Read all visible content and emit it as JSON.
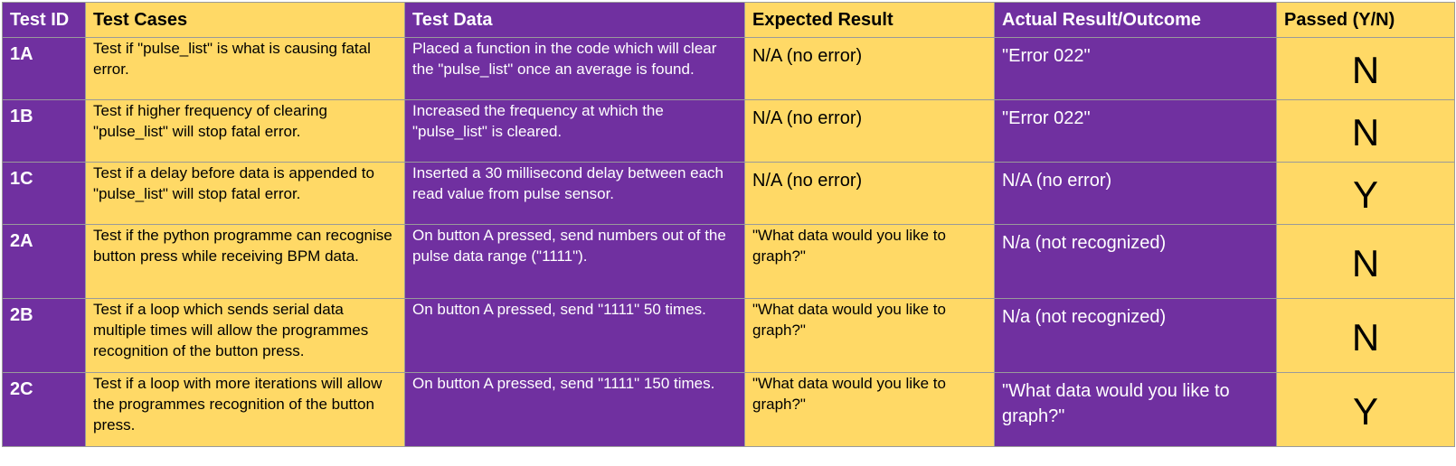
{
  "columns": {
    "id": "Test ID",
    "cases": "Test Cases",
    "data": "Test Data",
    "expected": "Expected Result",
    "actual": "Actual Result/Outcome",
    "passed": "Passed (Y/N)"
  },
  "rows": [
    {
      "id": "1A",
      "case": "Test if \"pulse_list\" is what is causing fatal error.",
      "data": "Placed a function in the code which will clear the \"pulse_list\" once an average is found.",
      "expected": "N/A (no error)",
      "actual": "\"Error 022\"",
      "passed": "N"
    },
    {
      "id": "1B",
      "case": "Test if higher frequency of clearing \"pulse_list\" will stop fatal error.",
      "data": "Increased the frequency at which the \"pulse_list\" is cleared.",
      "expected": "N/A (no error)",
      "actual": "\"Error 022\"",
      "passed": "N"
    },
    {
      "id": "1C",
      "case": "Test if a delay before data is appended to \"pulse_list\" will stop fatal error.",
      "data": "Inserted a 30 millisecond delay between each read value from pulse sensor.",
      "expected": "N/A (no error)",
      "actual": "N/A (no error)",
      "passed": "Y"
    },
    {
      "id": "2A",
      "case": "Test if the python programme can recognise button press while receiving BPM data.",
      "data": "On button A pressed, send numbers out of the pulse data range (\"1111\").",
      "expected": "\"What data would you like to graph?\"",
      "actual": "N/a (not recognized)",
      "passed": "N"
    },
    {
      "id": "2B",
      "case": "Test if a loop which sends serial data multiple times will allow the programmes recognition of the button press.",
      "data": "On button A pressed, send \"1111\" 50 times.",
      "expected": "\"What data would you like to graph?\"",
      "actual": "N/a (not recognized)",
      "passed": "N"
    },
    {
      "id": "2C",
      "case": "Test if a loop with more iterations will allow the programmes recognition of the button press.",
      "data": "On button A pressed, send \"1111\" 150 times.",
      "expected": "\"What data would you like to graph?\"",
      "actual": "\"What data would you like to graph?\"",
      "passed": "Y"
    }
  ],
  "colors": {
    "purple": "#7030a0",
    "yellow": "#ffd966",
    "border": "#9a9a9a"
  }
}
